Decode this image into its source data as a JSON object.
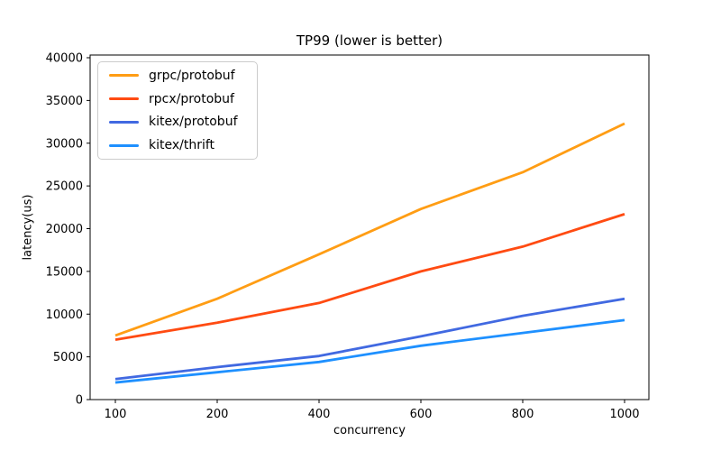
{
  "figure": {
    "background": "#ffffff",
    "border_color": "#000000"
  },
  "chart_data": {
    "type": "line",
    "title": "TP99 (lower is better)",
    "xlabel": "concurrency",
    "ylabel": "latency(us)",
    "categories": [
      100,
      200,
      400,
      600,
      800,
      1000
    ],
    "x_tick_labels": [
      "100",
      "200",
      "400",
      "600",
      "800",
      "1000"
    ],
    "x_spacing": "equal-categorical",
    "y_ticks": [
      0,
      5000,
      10000,
      15000,
      20000,
      25000,
      30000,
      35000,
      40000
    ],
    "y_tick_labels": [
      "0",
      "5000",
      "10000",
      "15000",
      "20000",
      "25000",
      "30000",
      "35000",
      "40000"
    ],
    "ylim": [
      0,
      40000
    ],
    "grid": false,
    "legend_position": "upper-left",
    "series": [
      {
        "name": "grpc/protobuf",
        "color": "#ff9d14",
        "values": [
          7500,
          11800,
          17000,
          22300,
          26600,
          32300
        ]
      },
      {
        "name": "rpcx/protobuf",
        "color": "#ff4b12",
        "values": [
          7000,
          9000,
          11300,
          15000,
          17900,
          21700
        ]
      },
      {
        "name": "kitex/protobuf",
        "color": "#4169e1",
        "values": [
          2400,
          3800,
          5100,
          7400,
          9800,
          11800
        ]
      },
      {
        "name": "kitex/thrift",
        "color": "#1e90ff",
        "values": [
          2000,
          3200,
          4400,
          6300,
          7800,
          9300
        ]
      }
    ]
  }
}
